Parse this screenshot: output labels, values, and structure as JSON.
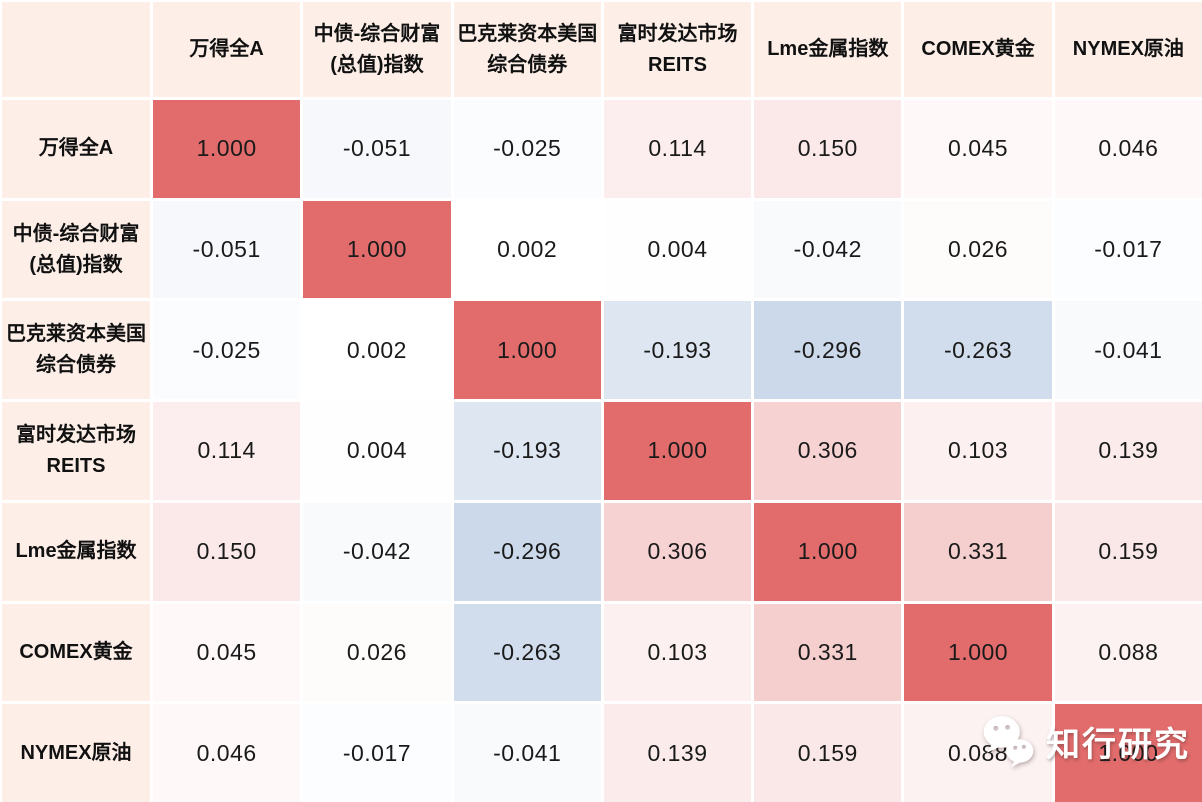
{
  "chart_data": {
    "type": "heatmap",
    "title": "",
    "description": "Correlation matrix of asset indices (symmetric 7x7)",
    "categories": [
      "万得全A",
      "中债-综合财富\n(总值)指数",
      "巴克莱资本美国\n综合债券",
      "富时发达市场\nREITS",
      "Lme金属指数",
      "COMEX黄金",
      "NYMEX原油"
    ],
    "matrix": [
      [
        1.0,
        -0.051,
        -0.025,
        0.114,
        0.15,
        0.045,
        0.046
      ],
      [
        -0.051,
        1.0,
        0.002,
        0.004,
        -0.042,
        0.026,
        -0.017
      ],
      [
        -0.025,
        0.002,
        1.0,
        -0.193,
        -0.296,
        -0.263,
        -0.041
      ],
      [
        0.114,
        0.004,
        -0.193,
        1.0,
        0.306,
        0.103,
        0.139
      ],
      [
        0.15,
        -0.042,
        -0.296,
        0.306,
        1.0,
        0.331,
        0.159
      ],
      [
        0.045,
        0.026,
        -0.263,
        0.103,
        0.331,
        1.0,
        0.088
      ],
      [
        0.046,
        -0.017,
        -0.041,
        0.139,
        0.159,
        0.088,
        1.0
      ]
    ],
    "value_decimals": 3,
    "value_range": [
      -1,
      1
    ],
    "colorscale": {
      "positive_max": "#e26c6c",
      "negative_max": "#4f7fb8",
      "zero": "#ffffff"
    },
    "header_bg": "#fdefe8",
    "gap_color": "#ffffff",
    "header_text_color": "#111111",
    "value_text_color": "#1a1a1a",
    "legend": "none",
    "grid": "white gaps between cells"
  },
  "watermark": {
    "label": "知行研究",
    "icon": "wechat-icon",
    "color": "#ffffff"
  }
}
